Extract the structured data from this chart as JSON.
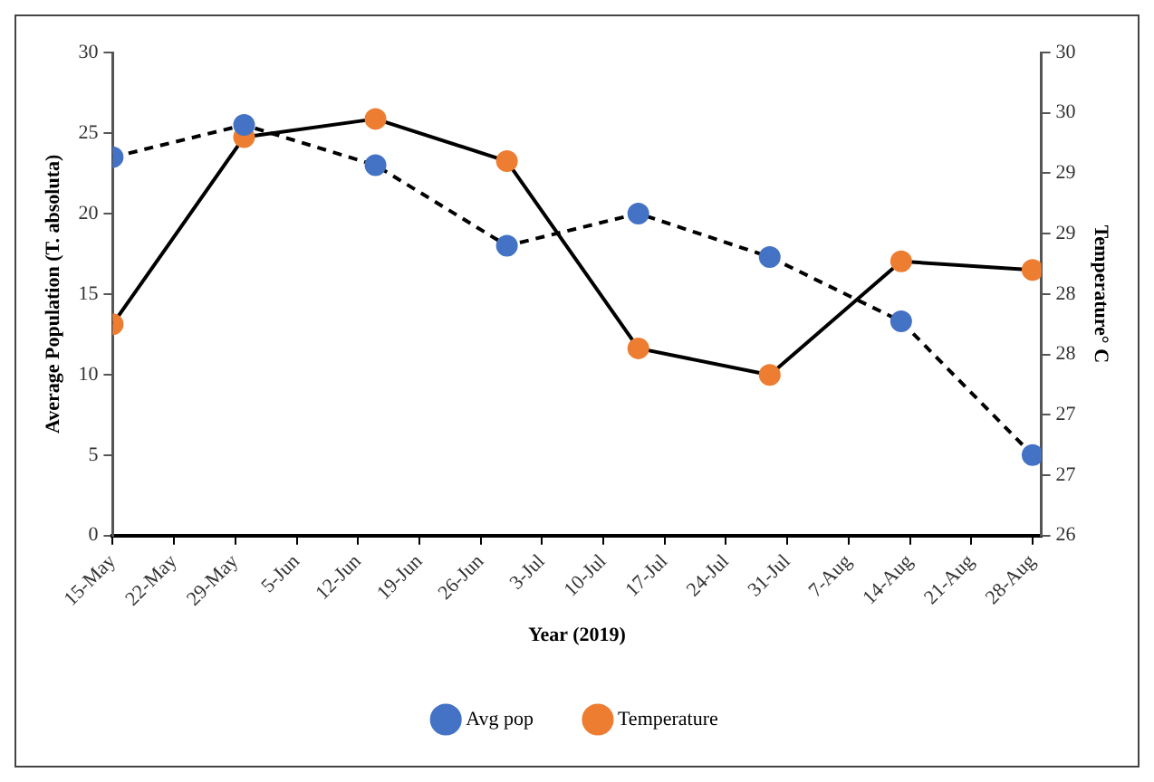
{
  "chart_data": {
    "type": "line",
    "xlabel": "Year (2019)",
    "ylabel": "Average Population (T. absoluta)",
    "y2label": "Temperature° C",
    "x": [
      "--05-15",
      "--05-30",
      "--06-14",
      "--06-29",
      "--07-14",
      "--07-29",
      "--08-13",
      "--08-28"
    ],
    "xlim": [
      "--05-15",
      "--08-29"
    ],
    "xticks": [
      {
        "value": "--05-15",
        "label": "15-May"
      },
      {
        "value": "--05-22",
        "label": "22-May"
      },
      {
        "value": "--05-29",
        "label": "29-May"
      },
      {
        "value": "--06-05",
        "label": "5-Jun"
      },
      {
        "value": "--06-12",
        "label": "12-Jun"
      },
      {
        "value": "--06-19",
        "label": "19-Jun"
      },
      {
        "value": "--06-26",
        "label": "26-Jun"
      },
      {
        "value": "--07-03",
        "label": "3-Jul"
      },
      {
        "value": "--07-10",
        "label": "10-Jul"
      },
      {
        "value": "--07-17",
        "label": "17-Jul"
      },
      {
        "value": "--07-24",
        "label": "24-Jul"
      },
      {
        "value": "--07-31",
        "label": "31-Jul"
      },
      {
        "value": "--08-07",
        "label": "7-Aug"
      },
      {
        "value": "--08-14",
        "label": "14-Aug"
      },
      {
        "value": "--08-21",
        "label": "21-Aug"
      },
      {
        "value": "--08-28",
        "label": "28-Aug"
      }
    ],
    "ylim": [
      0,
      30
    ],
    "yticks": [
      0,
      5,
      10,
      15,
      20,
      25,
      30
    ],
    "y2lim": [
      26,
      30
    ],
    "y2ticks": [
      26,
      {
        "value": 26.5,
        "label": "27"
      },
      27,
      {
        "value": 27.5,
        "label": "28"
      },
      28,
      {
        "value": 28.5,
        "label": "29"
      },
      29,
      {
        "value": 29.5,
        "label": "30"
      },
      30
    ],
    "series": [
      {
        "name": "Avg pop",
        "color": "#4472c4",
        "line_style": "dashed",
        "values": [
          23.5,
          25.5,
          23,
          18,
          20,
          17.3,
          13.3,
          5
        ]
      },
      {
        "name": "Temperature",
        "color": "#ed7d31",
        "line_style": "solid",
        "axis": "y2",
        "values": [
          27.75,
          29.3,
          29.45,
          29.1,
          27.55,
          27.33,
          28.27,
          28.2
        ]
      }
    ],
    "marker": "circle",
    "grid": false,
    "legend": "bottom"
  }
}
